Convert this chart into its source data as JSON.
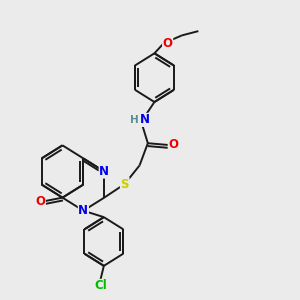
{
  "background_color": "#ebebeb",
  "bond_color": "#1a1a1a",
  "bond_width": 1.4,
  "atom_colors": {
    "N": "#0000ee",
    "O": "#ee0000",
    "S": "#cccc00",
    "Cl": "#00bb00",
    "H": "#5a9090",
    "C": "#1a1a1a"
  },
  "font_size": 8.5,
  "fig_size": [
    3.0,
    3.0
  ],
  "dpi": 100
}
